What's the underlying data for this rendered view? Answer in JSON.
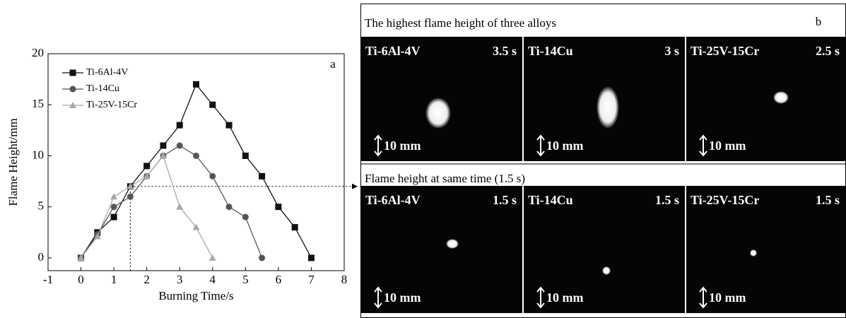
{
  "chart_data": {
    "type": "line",
    "annotation": "a",
    "x_label": "Burning Time/s",
    "y_label": "Flame Height/mm",
    "xlim": [
      -1,
      8
    ],
    "xticks": [
      -1,
      0,
      1,
      2,
      3,
      4,
      5,
      6,
      7,
      8
    ],
    "ylim": [
      -1.25,
      20
    ],
    "yticks": [
      0,
      5,
      10,
      15,
      20
    ],
    "legend": "upper left",
    "guide": {
      "x": 1.5,
      "y": 7
    },
    "series": [
      {
        "name": "Ti-6Al-4V",
        "color": "#111111",
        "marker": "square",
        "x": [
          0,
          0.5,
          1,
          1.5,
          2,
          2.5,
          3,
          3.5,
          4,
          4.5,
          5,
          5.5,
          6,
          6.5,
          7
        ],
        "values": [
          0,
          2.5,
          4,
          7,
          9,
          11,
          13,
          17,
          15,
          13,
          10,
          8,
          5,
          3,
          0
        ]
      },
      {
        "name": "Ti-14Cu",
        "color": "#555555",
        "marker": "circle",
        "x": [
          0,
          0.5,
          1,
          1.5,
          2,
          2.5,
          3,
          3.5,
          4,
          4.5,
          5,
          5.5
        ],
        "values": [
          0,
          2.3,
          5,
          6,
          8,
          10,
          11,
          10,
          8,
          5,
          4,
          0
        ]
      },
      {
        "name": "Ti-25V-15Cr",
        "color": "#a8a8a8",
        "marker": "triangle",
        "x": [
          0,
          0.5,
          1,
          1.5,
          2,
          2.5,
          3,
          3.5,
          4
        ],
        "values": [
          0,
          2.1,
          6,
          7,
          8,
          10,
          5,
          3,
          0
        ]
      }
    ]
  },
  "panel_b": {
    "label": "b",
    "rows": [
      {
        "title": "The highest flame height of three alloys",
        "images": [
          {
            "alloy": "Ti-6Al-4V",
            "time": "3.5 s",
            "scale": "10 mm"
          },
          {
            "alloy": "Ti-14Cu",
            "time": "3 s",
            "scale": "10 mm"
          },
          {
            "alloy": "Ti-25V-15Cr",
            "time": "2.5 s",
            "scale": "10 mm"
          }
        ]
      },
      {
        "title": "Flame height at same time (1.5 s)",
        "images": [
          {
            "alloy": "Ti-6Al-4V",
            "time": "1.5 s",
            "scale": "10 mm"
          },
          {
            "alloy": "Ti-14Cu",
            "time": "1.5 s",
            "scale": "10 mm"
          },
          {
            "alloy": "Ti-25V-15Cr",
            "time": "1.5 s",
            "scale": "10 mm"
          }
        ]
      }
    ]
  }
}
